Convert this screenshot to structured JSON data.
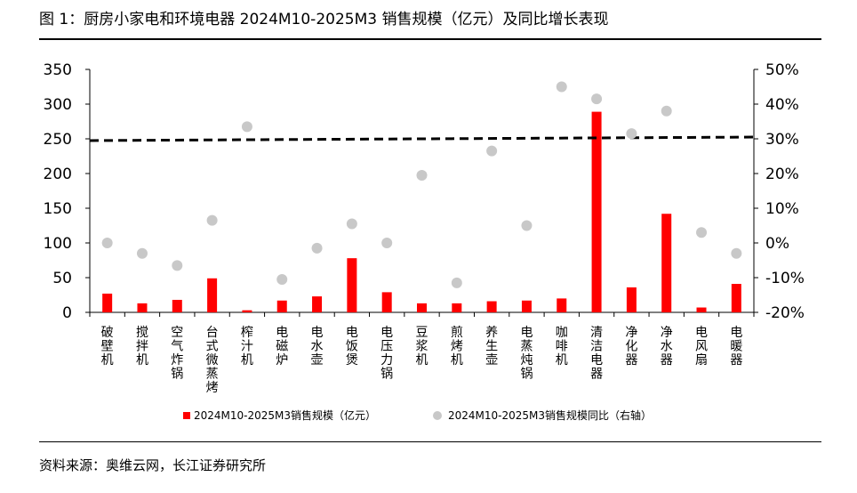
{
  "title": "图 1：厨房小家电和环境电器 2024M10-2025M3 销售规模（亿元）及同比增长表现",
  "source": "资料来源：奥维云网，长江证券研究所",
  "chart_data": {
    "type": "bar",
    "categories": [
      "破壁机",
      "搅拌机",
      "空气炸锅",
      "台式微蒸烤",
      "榨汁机",
      "电磁炉",
      "电水壶",
      "电饭煲",
      "电压力锅",
      "豆浆机",
      "煎烤机",
      "养生壶",
      "电蒸炖锅",
      "咖啡机",
      "清洁电器",
      "净化器",
      "净水器",
      "电风扇",
      "电暖器"
    ],
    "series": [
      {
        "name": "2024M10-2025M3销售规模（亿元）",
        "kind": "bar",
        "axis": "left",
        "color": "#ff0000",
        "values": [
          27,
          13,
          18,
          49,
          3,
          17,
          23,
          78,
          29,
          13,
          13,
          16,
          17,
          20,
          289,
          36,
          142,
          7,
          41
        ]
      },
      {
        "name": "2024M10-2025M3销售规模同比（右轴）",
        "kind": "scatter",
        "axis": "right",
        "color": "#c8c8c8",
        "values": [
          0.0,
          -3.0,
          -6.5,
          6.5,
          33.5,
          -10.5,
          -1.5,
          5.5,
          0.0,
          19.5,
          -11.5,
          26.5,
          5.0,
          45.0,
          41.5,
          31.5,
          38.0,
          3.0,
          -3.0
        ]
      }
    ],
    "reference_line": {
      "axis": "right",
      "start": 29.5,
      "end": 30.5,
      "style": "dashed",
      "color": "#000000"
    },
    "left_axis": {
      "min": 0,
      "max": 350,
      "ticks": [
        0,
        50,
        100,
        150,
        200,
        250,
        300,
        350
      ]
    },
    "right_axis": {
      "min": -20,
      "max": 50,
      "ticks": [
        "-20%",
        "-10%",
        "0%",
        "10%",
        "20%",
        "30%",
        "40%",
        "50%"
      ]
    },
    "legend_position": "bottom"
  }
}
